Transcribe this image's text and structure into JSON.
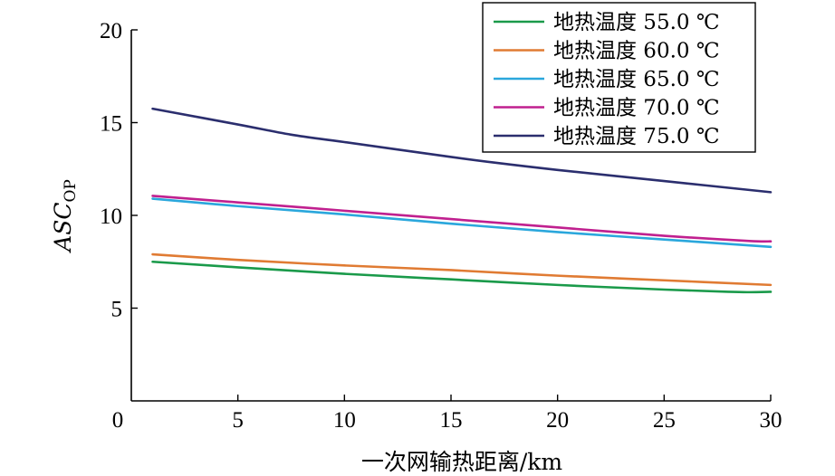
{
  "chart_data": {
    "type": "line",
    "title": "",
    "xlabel": "一次网输热距离/km",
    "ylabel": "ASC",
    "ylabel_subscript": "OP",
    "xlim": [
      0,
      30
    ],
    "ylim": [
      0,
      20
    ],
    "xticks": [
      0,
      5,
      10,
      15,
      20,
      25,
      30
    ],
    "yticks": [
      5,
      10,
      15,
      20
    ],
    "grid": false,
    "legend_position": "top-right",
    "series": [
      {
        "name": "地热温度 55.0 ℃",
        "color": "#1a9a4a",
        "x": [
          1,
          5,
          10,
          15,
          20,
          25,
          28,
          29,
          30
        ],
        "y": [
          7.5,
          7.2,
          6.85,
          6.55,
          6.25,
          6.0,
          5.88,
          5.86,
          5.88
        ]
      },
      {
        "name": "地热温度 60.0 ℃",
        "color": "#e07b33",
        "x": [
          1,
          5,
          10,
          15,
          20,
          25,
          30
        ],
        "y": [
          7.9,
          7.6,
          7.3,
          7.05,
          6.75,
          6.5,
          6.25
        ]
      },
      {
        "name": "地热温度 65.0 ℃",
        "color": "#2aa7dc",
        "x": [
          1,
          5,
          10,
          15,
          20,
          25,
          30
        ],
        "y": [
          10.9,
          10.5,
          10.05,
          9.55,
          9.1,
          8.7,
          8.3
        ]
      },
      {
        "name": "地热温度 70.0 ℃",
        "color": "#c0208f",
        "x": [
          1,
          5,
          10,
          15,
          20,
          25,
          29,
          30
        ],
        "y": [
          11.05,
          10.7,
          10.25,
          9.8,
          9.35,
          8.9,
          8.62,
          8.6
        ]
      },
      {
        "name": "地热温度 75.0 ℃",
        "color": "#2b2e6e",
        "x": [
          1,
          5,
          7.5,
          10,
          15,
          17,
          20,
          25,
          30
        ],
        "y": [
          15.75,
          14.9,
          14.35,
          13.95,
          13.15,
          12.85,
          12.45,
          11.85,
          11.25
        ]
      }
    ]
  }
}
